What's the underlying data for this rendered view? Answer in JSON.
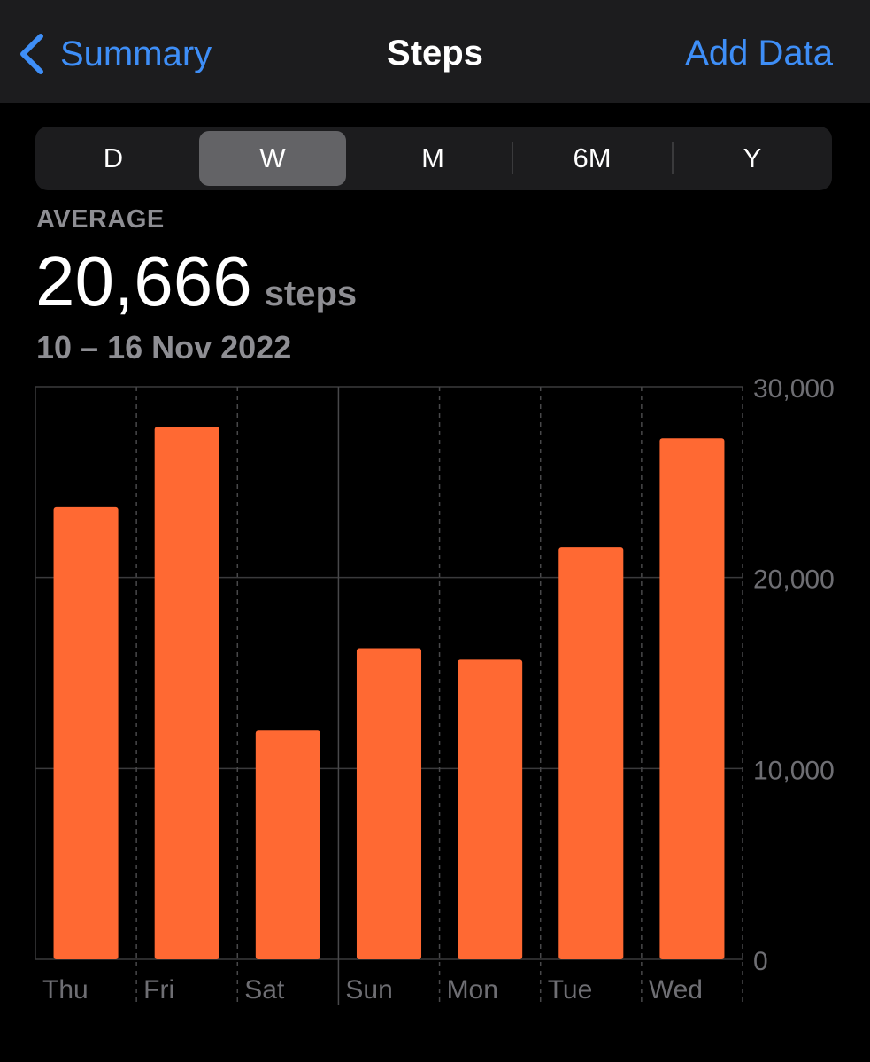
{
  "nav": {
    "back_label": "Summary",
    "title": "Steps",
    "action_label": "Add Data"
  },
  "range_selector": {
    "segments": [
      "D",
      "W",
      "M",
      "6M",
      "Y"
    ],
    "selected": "W"
  },
  "summary": {
    "label": "AVERAGE",
    "value": "20,666",
    "unit": "steps",
    "date_range": "10 – 16 Nov 2022"
  },
  "colors": {
    "accent": "#3e8ef7",
    "bar": "#ff6933",
    "background": "#000000",
    "navbar": "#1c1c1e",
    "secondary_text": "#8e8e93"
  },
  "chart_data": {
    "type": "bar",
    "categories": [
      "Thu",
      "Fri",
      "Sat",
      "Sun",
      "Mon",
      "Tue",
      "Wed"
    ],
    "values": [
      23700,
      27900,
      12000,
      16300,
      15700,
      21600,
      27300
    ],
    "ylim": [
      0,
      30000
    ],
    "yticks": [
      "0",
      "10,000",
      "20,000",
      "30,000"
    ],
    "ytick_values": [
      0,
      10000,
      20000,
      30000
    ],
    "grid": true,
    "y_axis_position": "right"
  }
}
